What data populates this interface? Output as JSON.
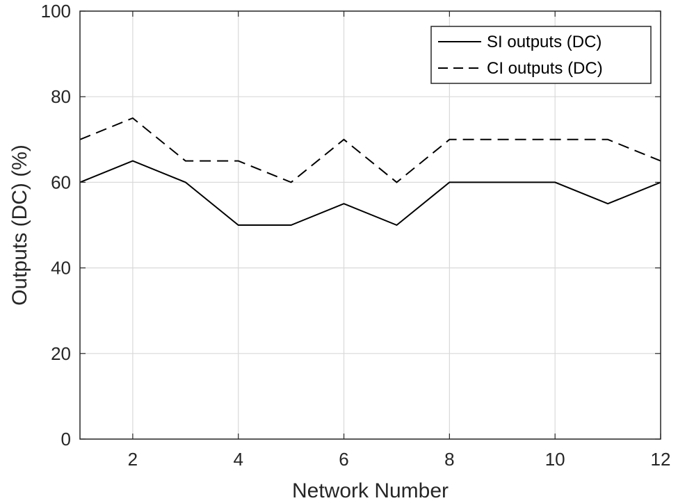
{
  "chart_data": {
    "type": "line",
    "title": "",
    "xlabel": "Network Number",
    "ylabel": "Outputs (DC) (%)",
    "xlim": [
      1,
      12
    ],
    "ylim": [
      0,
      100
    ],
    "xticks": [
      2,
      4,
      6,
      8,
      10,
      12
    ],
    "yticks": [
      0,
      20,
      40,
      60,
      80,
      100
    ],
    "grid": true,
    "legend_position": "top-right",
    "x": [
      1,
      2,
      3,
      4,
      5,
      6,
      7,
      8,
      9,
      10,
      11,
      12
    ],
    "series": [
      {
        "name": "SI outputs (DC)",
        "line_style": "solid",
        "color": "#000000",
        "values": [
          60,
          65,
          60,
          50,
          50,
          55,
          50,
          60,
          60,
          60,
          55,
          60
        ]
      },
      {
        "name": "CI outputs (DC)",
        "line_style": "dashed",
        "color": "#000000",
        "values": [
          70,
          75,
          65,
          65,
          60,
          70,
          60,
          70,
          70,
          70,
          70,
          65
        ]
      }
    ]
  }
}
